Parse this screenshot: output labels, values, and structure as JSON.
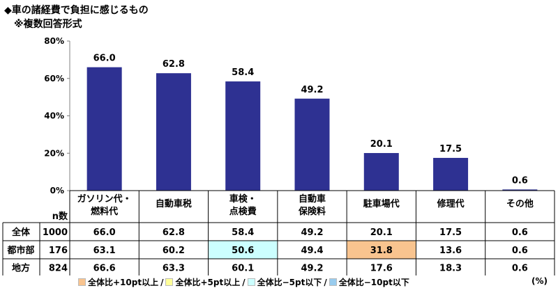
{
  "title": "◆車の諸経費で負担に感じるもの",
  "subtitle": "※複数回答形式",
  "colors": {
    "bar": "#2e3192",
    "axis": "#808080",
    "grid": "#000000",
    "plus10": "#f9c48f",
    "plus5": "#ffff99",
    "minus5": "#ccffff",
    "minus10": "#99ccee"
  },
  "chart_data": {
    "type": "bar",
    "categories": [
      [
        "ガソリン代・",
        "燃料代"
      ],
      [
        "自動車税"
      ],
      [
        "車検・",
        "点検費"
      ],
      [
        "自動車",
        "保険料"
      ],
      [
        "駐車場代"
      ],
      [
        "修理代"
      ],
      [
        "その他"
      ]
    ],
    "values": [
      66.0,
      62.8,
      58.4,
      49.2,
      20.1,
      17.5,
      0.6
    ],
    "value_labels": [
      "66.0",
      "62.8",
      "58.4",
      "49.2",
      "20.1",
      "17.5",
      "0.6"
    ],
    "ylim": [
      0,
      80
    ],
    "yticks": [
      "0%",
      "20%",
      "40%",
      "60%",
      "80%"
    ],
    "ytick_values": [
      0,
      20,
      40,
      60,
      80
    ]
  },
  "table": {
    "n_header": "n数",
    "rows": [
      {
        "label": "全体",
        "n": "1000",
        "values": [
          "66.0",
          "62.8",
          "58.4",
          "49.2",
          "20.1",
          "17.5",
          "0.6"
        ],
        "highlights": [
          "",
          "",
          "",
          "",
          "",
          "",
          ""
        ]
      },
      {
        "label": "都市部",
        "n": "176",
        "values": [
          "63.1",
          "60.2",
          "50.6",
          "49.4",
          "31.8",
          "13.6",
          "0.6"
        ],
        "highlights": [
          "",
          "",
          "minus5",
          "",
          "plus10",
          "",
          ""
        ]
      },
      {
        "label": "地方",
        "n": "824",
        "values": [
          "66.6",
          "63.3",
          "60.1",
          "49.2",
          "17.6",
          "18.3",
          "0.6"
        ],
        "highlights": [
          "",
          "",
          "",
          "",
          "",
          "",
          ""
        ]
      }
    ]
  },
  "legend": {
    "items": [
      {
        "key": "plus10",
        "label": "全体比+10pt以上"
      },
      {
        "key": "plus5",
        "label": "全体比+5pt以上"
      },
      {
        "key": "minus5",
        "label": "全体比−5pt以下"
      },
      {
        "key": "minus10",
        "label": "全体比−10pt以下"
      }
    ],
    "separator": "/",
    "unit": "(%)"
  }
}
